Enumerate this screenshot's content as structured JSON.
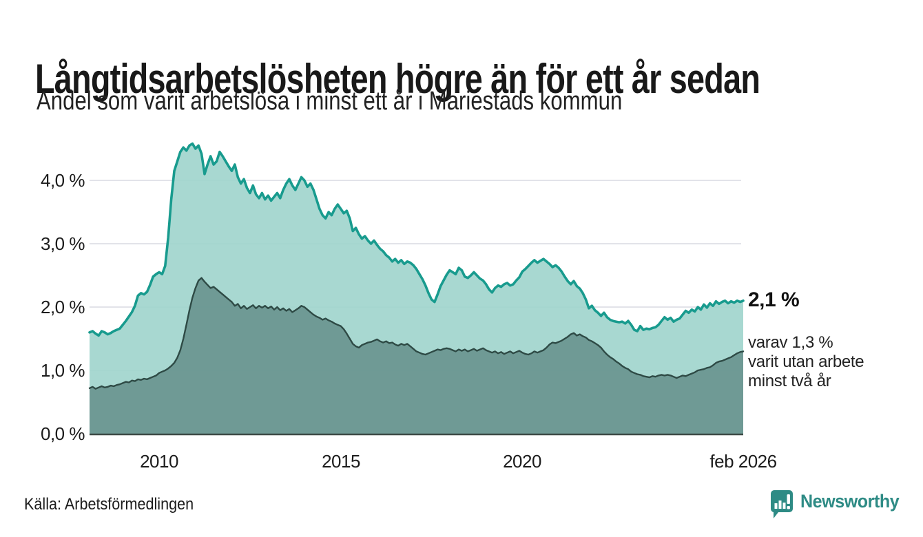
{
  "chart_data": {
    "type": "area",
    "title": "Långtidsarbetslösheten högre än för ett år sedan",
    "subtitle": "Andel som varit arbetslösa i minst ett år i Mariestads kommun",
    "x_axis": {
      "interval": "monthly",
      "start_decimal_year": 2008.0833,
      "end_decimal_year": 2026.0833,
      "ticks": [
        {
          "label": "2010",
          "year": 2010
        },
        {
          "label": "2015",
          "year": 2015
        },
        {
          "label": "2020",
          "year": 2020
        },
        {
          "label": "feb 2026",
          "year": 2026.0833
        }
      ]
    },
    "y_axis": {
      "unit": "%",
      "min": 0,
      "max": 4.84,
      "grid": true,
      "ticks": [
        {
          "label": "4,0 %",
          "value": 4.0
        },
        {
          "label": "3,0 %",
          "value": 3.0
        },
        {
          "label": "2,0 %",
          "value": 2.0
        },
        {
          "label": "1,0 %",
          "value": 1.0
        },
        {
          "label": "0,0 %",
          "value": 0.0
        }
      ]
    },
    "annotations": {
      "latest_total": "2,1 %",
      "latest_sub_lines": [
        "varav 1,3 %",
        "varit utan arbete",
        "minst två år"
      ]
    },
    "colors": {
      "total_line": "#189b8e",
      "total_fill": "#9fd4cc",
      "sub_line": "#2e4a45",
      "sub_fill": "#68948e",
      "gridline": "#e2e3e9",
      "axis_line": "#3d4a46"
    },
    "series": [
      {
        "name": "Arbetslösa minst ett år",
        "line_color": "#189b8e",
        "fill_color": "#9fd4cc",
        "values": [
          1.6,
          1.62,
          1.58,
          1.55,
          1.62,
          1.6,
          1.57,
          1.59,
          1.62,
          1.64,
          1.66,
          1.72,
          1.78,
          1.85,
          1.92,
          2.02,
          2.18,
          2.22,
          2.2,
          2.24,
          2.35,
          2.48,
          2.52,
          2.55,
          2.52,
          2.65,
          3.1,
          3.7,
          4.15,
          4.3,
          4.45,
          4.52,
          4.47,
          4.55,
          4.58,
          4.5,
          4.55,
          4.42,
          4.1,
          4.25,
          4.38,
          4.25,
          4.3,
          4.45,
          4.38,
          4.3,
          4.22,
          4.15,
          4.25,
          4.05,
          3.95,
          4.02,
          3.88,
          3.8,
          3.92,
          3.78,
          3.72,
          3.8,
          3.7,
          3.76,
          3.68,
          3.74,
          3.8,
          3.72,
          3.85,
          3.95,
          4.02,
          3.92,
          3.85,
          3.95,
          4.05,
          4.0,
          3.9,
          3.95,
          3.85,
          3.7,
          3.55,
          3.45,
          3.4,
          3.5,
          3.45,
          3.55,
          3.62,
          3.55,
          3.48,
          3.52,
          3.4,
          3.2,
          3.25,
          3.15,
          3.08,
          3.12,
          3.05,
          3.0,
          3.05,
          2.98,
          2.92,
          2.88,
          2.82,
          2.78,
          2.72,
          2.76,
          2.7,
          2.74,
          2.68,
          2.72,
          2.7,
          2.66,
          2.6,
          2.52,
          2.44,
          2.34,
          2.22,
          2.12,
          2.08,
          2.2,
          2.33,
          2.42,
          2.51,
          2.58,
          2.55,
          2.52,
          2.62,
          2.58,
          2.48,
          2.46,
          2.5,
          2.55,
          2.5,
          2.45,
          2.42,
          2.36,
          2.28,
          2.23,
          2.3,
          2.34,
          2.32,
          2.36,
          2.38,
          2.34,
          2.36,
          2.42,
          2.47,
          2.56,
          2.6,
          2.65,
          2.7,
          2.74,
          2.7,
          2.73,
          2.76,
          2.72,
          2.68,
          2.63,
          2.66,
          2.62,
          2.56,
          2.48,
          2.41,
          2.36,
          2.41,
          2.33,
          2.29,
          2.22,
          2.12,
          1.98,
          2.02,
          1.95,
          1.91,
          1.86,
          1.91,
          1.84,
          1.8,
          1.78,
          1.77,
          1.76,
          1.77,
          1.74,
          1.78,
          1.72,
          1.64,
          1.62,
          1.7,
          1.64,
          1.66,
          1.65,
          1.67,
          1.68,
          1.72,
          1.78,
          1.84,
          1.8,
          1.83,
          1.77,
          1.8,
          1.82,
          1.88,
          1.94,
          1.91,
          1.96,
          1.93,
          2.0,
          1.96,
          2.04,
          1.99,
          2.06,
          2.02,
          2.09,
          2.05,
          2.08,
          2.1,
          2.06,
          2.09,
          2.07,
          2.1,
          2.08,
          2.1
        ]
      },
      {
        "name": "Utan arbete minst två år",
        "line_color": "#2e4a45",
        "fill_color": "#68948e",
        "values": [
          0.72,
          0.74,
          0.71,
          0.73,
          0.75,
          0.73,
          0.74,
          0.76,
          0.75,
          0.77,
          0.78,
          0.8,
          0.82,
          0.81,
          0.84,
          0.83,
          0.86,
          0.85,
          0.87,
          0.86,
          0.88,
          0.9,
          0.92,
          0.96,
          0.98,
          1.0,
          1.03,
          1.07,
          1.12,
          1.2,
          1.32,
          1.5,
          1.72,
          1.95,
          2.15,
          2.3,
          2.42,
          2.46,
          2.4,
          2.35,
          2.3,
          2.32,
          2.28,
          2.24,
          2.2,
          2.16,
          2.12,
          2.08,
          2.02,
          2.05,
          1.98,
          2.02,
          1.97,
          2.0,
          2.03,
          1.98,
          2.02,
          1.99,
          2.02,
          1.98,
          2.01,
          1.96,
          2.0,
          1.95,
          1.98,
          1.94,
          1.97,
          1.92,
          1.95,
          1.98,
          2.02,
          2.0,
          1.96,
          1.92,
          1.88,
          1.85,
          1.83,
          1.8,
          1.82,
          1.79,
          1.77,
          1.74,
          1.72,
          1.7,
          1.65,
          1.58,
          1.5,
          1.42,
          1.38,
          1.36,
          1.4,
          1.42,
          1.44,
          1.45,
          1.47,
          1.49,
          1.46,
          1.44,
          1.46,
          1.43,
          1.44,
          1.41,
          1.39,
          1.42,
          1.4,
          1.42,
          1.38,
          1.34,
          1.3,
          1.28,
          1.26,
          1.25,
          1.27,
          1.29,
          1.31,
          1.33,
          1.32,
          1.34,
          1.35,
          1.34,
          1.32,
          1.3,
          1.33,
          1.31,
          1.33,
          1.3,
          1.32,
          1.34,
          1.31,
          1.33,
          1.35,
          1.32,
          1.3,
          1.28,
          1.3,
          1.27,
          1.29,
          1.26,
          1.28,
          1.3,
          1.27,
          1.29,
          1.31,
          1.28,
          1.26,
          1.25,
          1.27,
          1.3,
          1.28,
          1.3,
          1.32,
          1.36,
          1.41,
          1.44,
          1.43,
          1.45,
          1.47,
          1.5,
          1.53,
          1.57,
          1.59,
          1.55,
          1.57,
          1.54,
          1.52,
          1.48,
          1.46,
          1.43,
          1.4,
          1.36,
          1.3,
          1.25,
          1.21,
          1.18,
          1.14,
          1.11,
          1.07,
          1.04,
          1.02,
          0.98,
          0.96,
          0.94,
          0.93,
          0.91,
          0.9,
          0.89,
          0.91,
          0.9,
          0.92,
          0.93,
          0.92,
          0.93,
          0.92,
          0.9,
          0.88,
          0.9,
          0.92,
          0.91,
          0.93,
          0.95,
          0.97,
          1.0,
          1.01,
          1.02,
          1.04,
          1.05,
          1.08,
          1.12,
          1.14,
          1.15,
          1.17,
          1.19,
          1.21,
          1.24,
          1.27,
          1.29,
          1.3
        ]
      }
    ]
  },
  "footer": {
    "source": "Källa: Arbetsförmedlingen",
    "brand": "Newsworthy",
    "brand_color": "#2e8b85",
    "brand_icon": "bar-chart-speech-bubble"
  }
}
